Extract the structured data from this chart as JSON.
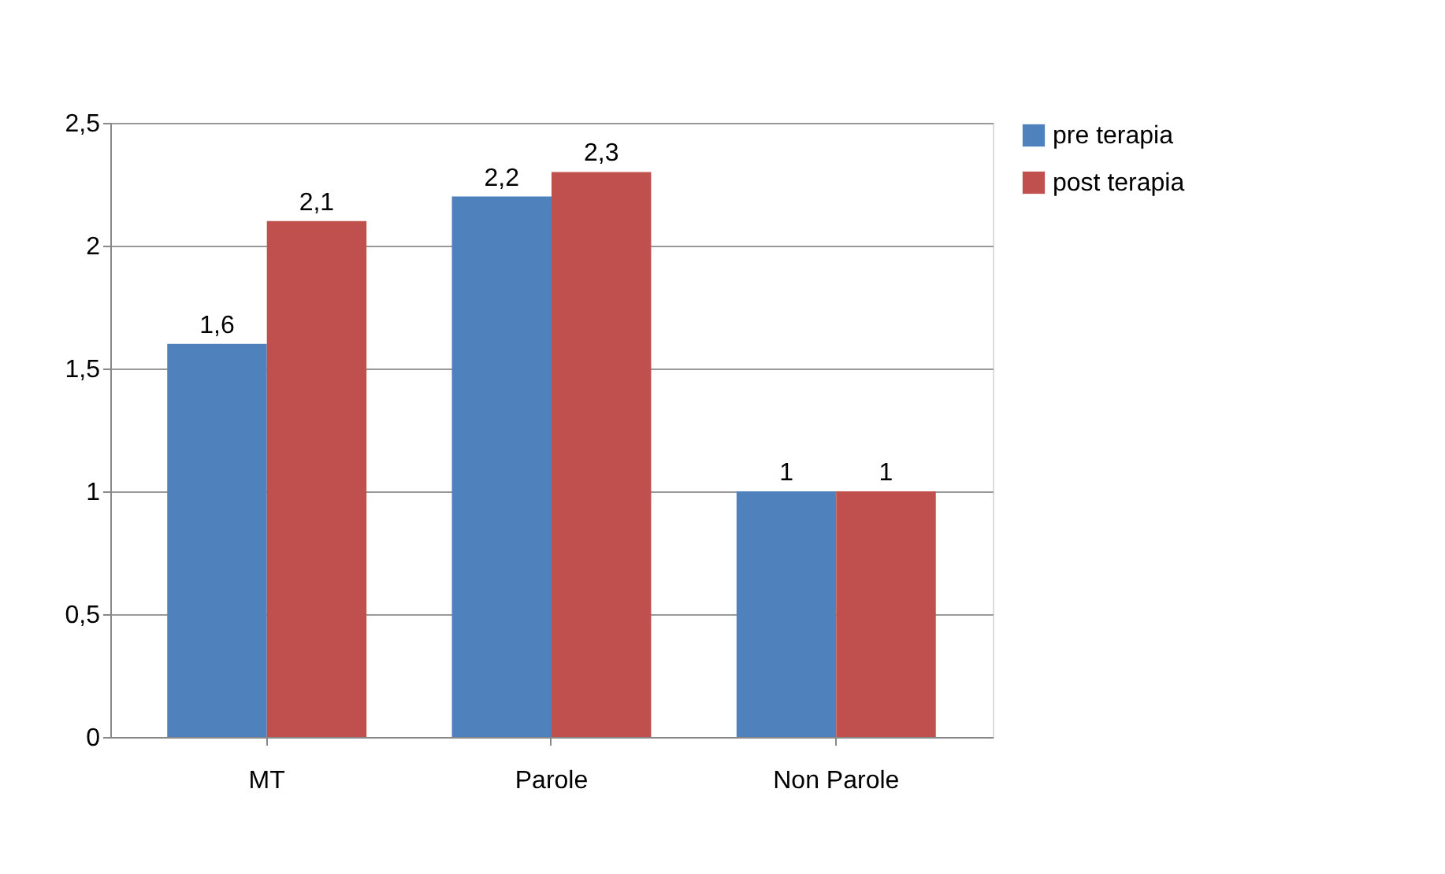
{
  "chart_data": {
    "type": "bar",
    "categories": [
      "MT",
      "Parole",
      "Non Parole"
    ],
    "series": [
      {
        "name": "pre terapia",
        "color": "#4f81bd",
        "values": [
          1.6,
          2.2,
          1
        ],
        "value_labels": [
          "1,6",
          "2,2",
          "1"
        ]
      },
      {
        "name": "post terapia",
        "color": "#c0504d",
        "values": [
          2.1,
          2.3,
          1
        ],
        "value_labels": [
          "2,1",
          "2,3",
          "1"
        ]
      }
    ],
    "ylim": [
      0,
      2.5
    ],
    "yticks": [
      0,
      {
        "value": 0.5,
        "label": "0,5"
      },
      1,
      {
        "value": 1.5,
        "label": "1,5"
      },
      2,
      {
        "value": 2.5,
        "label": "2,5"
      }
    ],
    "grid": "y",
    "legend": "right"
  }
}
